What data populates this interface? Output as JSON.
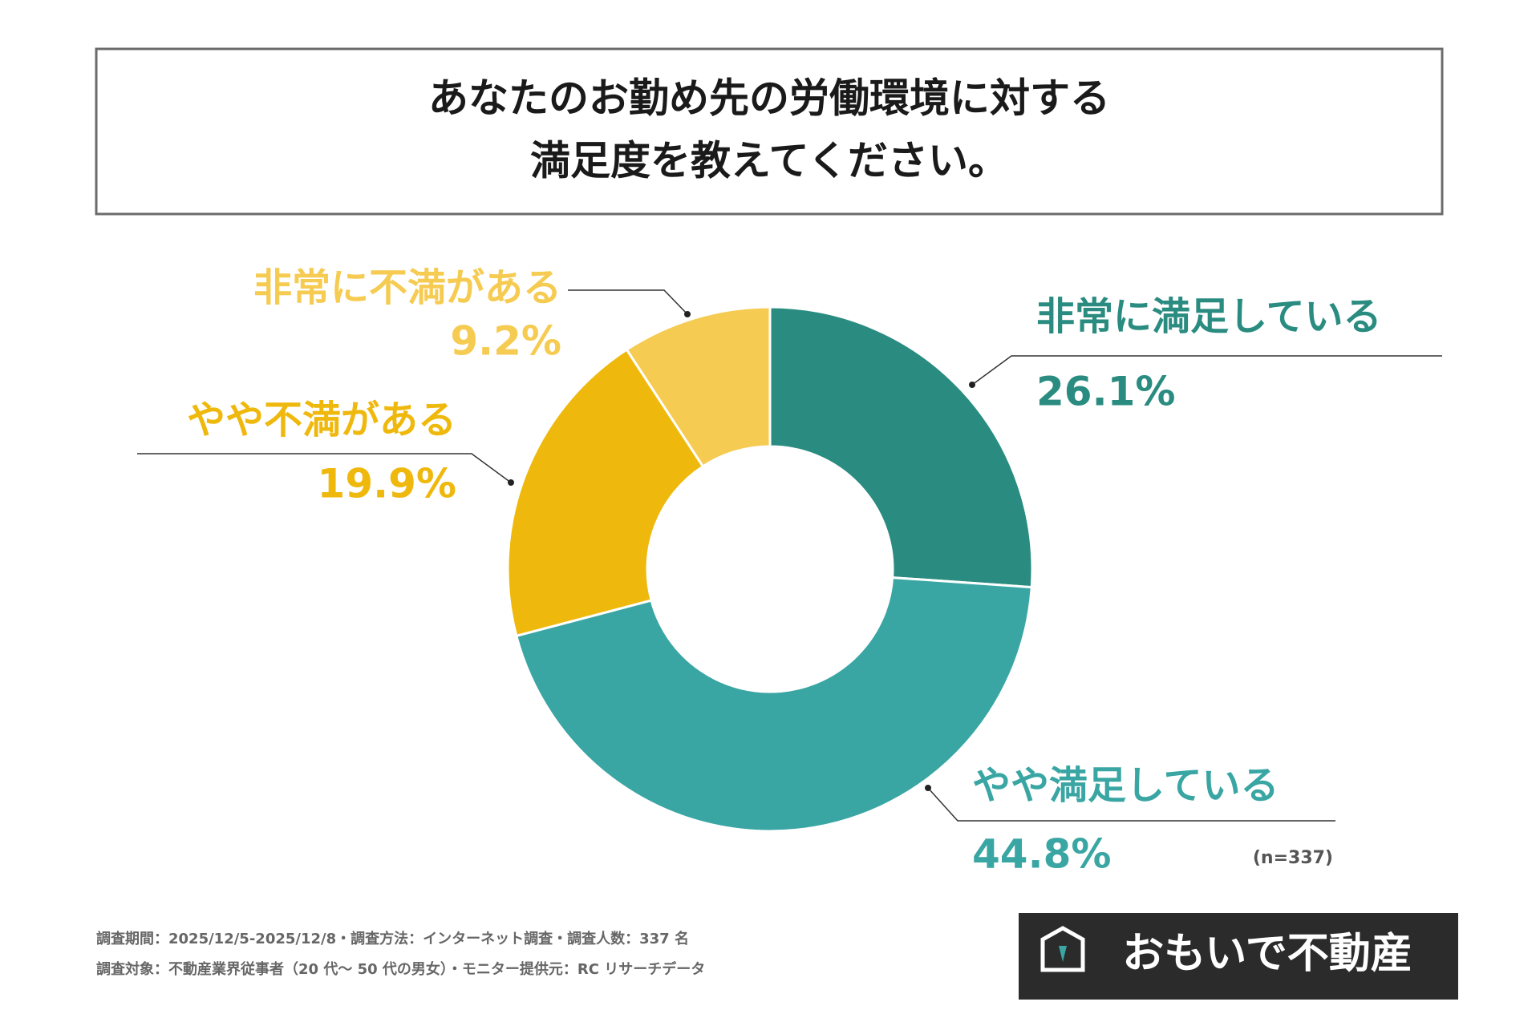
{
  "chart_data": {
    "type": "donut",
    "title": [
      "あなたのお勤め先の労働環境に対する",
      "満足度を教えてください。"
    ],
    "categories": [
      "非常に満足している",
      "やや満足している",
      "やや不満がある",
      "非常に不満がある"
    ],
    "values": [
      26.1,
      44.8,
      19.9,
      9.2
    ],
    "value_labels": [
      "26.1%",
      "44.8%",
      "19.9%",
      "9.2%"
    ],
    "colors": [
      "#2a8c80",
      "#3aa6a4",
      "#efb80c",
      "#f6cb52"
    ],
    "note": "(n=337)"
  },
  "footer": {
    "notes": [
      "調査期間：2025/12/5-2025/12/8・調査方法：インターネット調査・調査人数：337 名",
      "調査対象：不動産業界従事者（20 代～ 50 代の男女）・モニター提供元：RC リサーチデータ"
    ],
    "logo": "おもいで不動産"
  }
}
